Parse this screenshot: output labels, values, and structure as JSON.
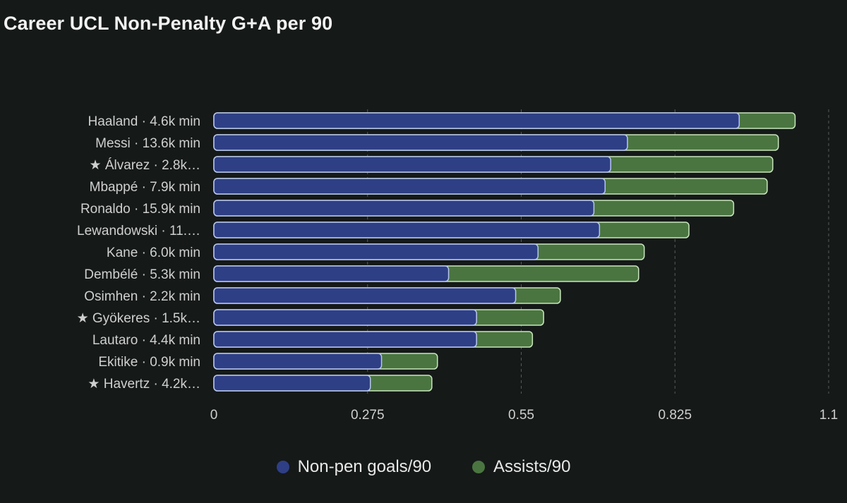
{
  "chart_data": {
    "type": "bar",
    "orientation": "horizontal",
    "stacked": true,
    "title": "Career UCL Non-Penalty G+A per 90",
    "xlabel": "",
    "ylabel": "",
    "xlim": [
      0,
      1.1
    ],
    "xticks": [
      0,
      0.275,
      0.55,
      0.825,
      1.1
    ],
    "xtick_labels": [
      "0",
      "0.275",
      "0.55",
      "0.825",
      "1.1"
    ],
    "grid": "vertical dashed",
    "legend_position": "bottom",
    "categories": [
      "Haaland · 4.6k min",
      "Messi · 13.6k min",
      "★ Álvarez · 2.8k…",
      "Mbappé · 7.9k min",
      "Ronaldo · 15.9k min",
      "Lewandowski · 11.…",
      "Kane · 6.0k min",
      "Dembélé · 5.3k min",
      "Osimhen · 2.2k min",
      "★ Gyökeres · 1.5k…",
      "Lautaro · 4.4k min",
      "Ekitike · 0.9k min",
      "★ Havertz · 4.2k…"
    ],
    "series": [
      {
        "name": "Non-pen goals/90",
        "color": "#2f3f86",
        "values": [
          0.94,
          0.74,
          0.71,
          0.7,
          0.68,
          0.69,
          0.58,
          0.42,
          0.54,
          0.47,
          0.47,
          0.3,
          0.28
        ]
      },
      {
        "name": "Assists/90",
        "color": "#4a7540",
        "values": [
          0.1,
          0.27,
          0.29,
          0.29,
          0.25,
          0.16,
          0.19,
          0.34,
          0.08,
          0.12,
          0.1,
          0.1,
          0.11
        ]
      }
    ]
  },
  "colors": {
    "background": "#151918",
    "goals_fill": "#2f3f86",
    "goals_stroke": "#b8c6ee",
    "assists_fill": "#4a7540",
    "assists_stroke": "#c9e6bd",
    "grid": "#5a5a5a",
    "text": "#cfcfcf"
  }
}
